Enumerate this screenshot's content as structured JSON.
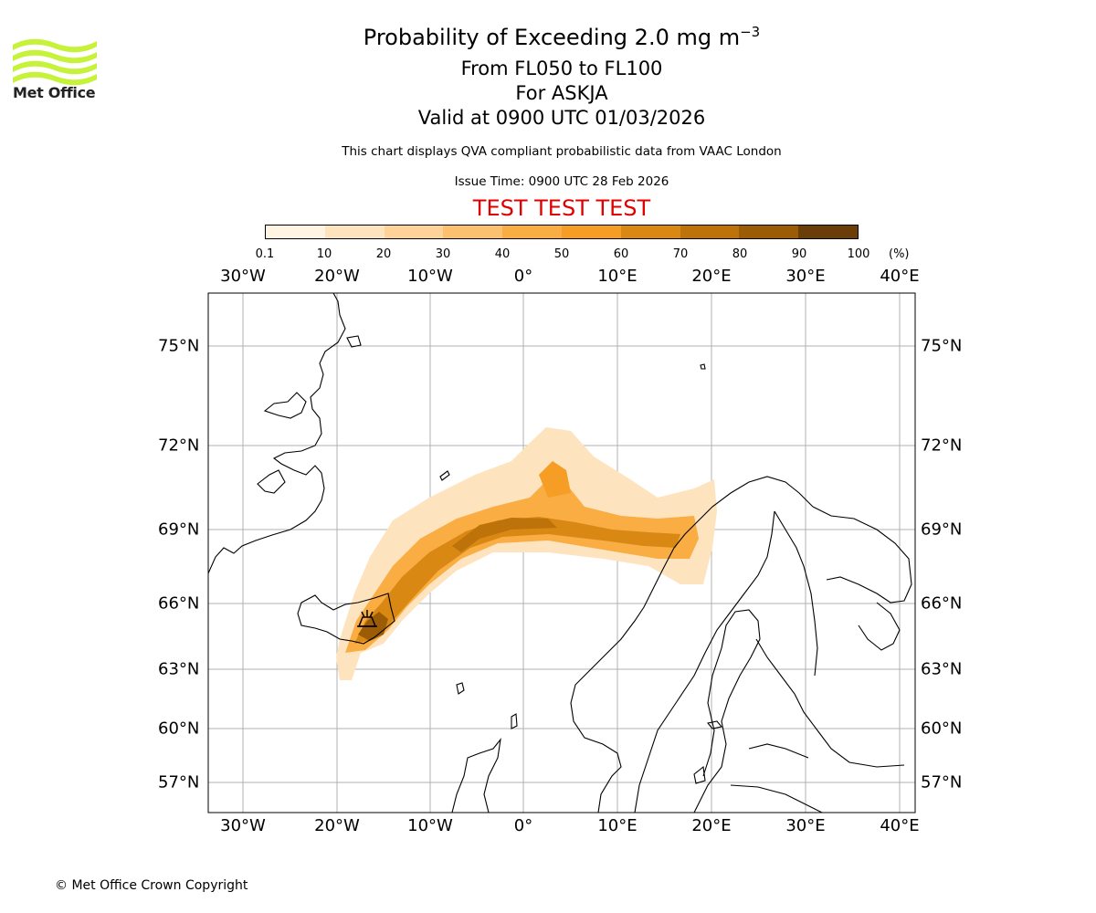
{
  "header": {
    "logo_text": "Met Office",
    "title_main": "Probability of Exceeding 2.0 mg m",
    "title_sup": "−3",
    "title_levels": "From FL050 to FL100",
    "title_volcano": "For ASKJA",
    "title_valid": "Valid at 0900 UTC 01/03/2026",
    "subtitle": "This chart displays QVA compliant probabilistic data from VAAC London",
    "issue_time": "Issue Time: 0900 UTC 28 Feb 2026",
    "test_banner": "TEST TEST TEST"
  },
  "colorbar": {
    "ticks": [
      "0.1",
      "10",
      "20",
      "30",
      "40",
      "50",
      "60",
      "70",
      "80",
      "90",
      "100"
    ],
    "unit": "(%)",
    "colors": [
      "#fff4e1",
      "#fee3bf",
      "#fdd39a",
      "#fbc16f",
      "#f9ad43",
      "#f59d25",
      "#d98813",
      "#bd720a",
      "#9c5c06",
      "#6b3d07"
    ]
  },
  "map": {
    "lon_labels": [
      "30°W",
      "20°W",
      "10°W",
      "0°",
      "10°E",
      "20°E",
      "30°E",
      "40°E"
    ],
    "lat_labels": [
      "75°N",
      "72°N",
      "69°N",
      "66°N",
      "63°N",
      "60°N",
      "57°N"
    ],
    "volcano_icon": "volcano-icon",
    "plume_colors": {
      "low": "#fee3bf",
      "mid": "#f9ad43",
      "high": "#d98813",
      "peak": "#9c5c06"
    }
  },
  "footer": {
    "copyright": "© Met Office Crown Copyright"
  }
}
